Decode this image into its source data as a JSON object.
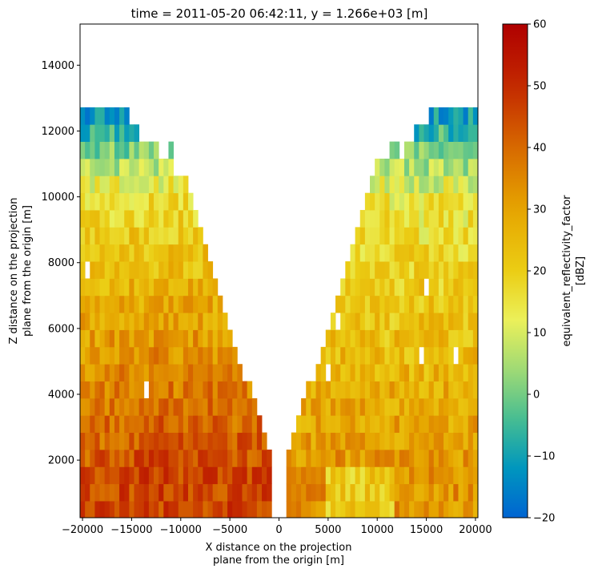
{
  "chart_data": {
    "type": "heatmap",
    "title": "time = 2011-05-20 06:42:11, y = 1.266e+03 [m]",
    "xlabel": [
      "X distance on the projection",
      "plane from the origin [m]"
    ],
    "ylabel": [
      "Z distance on the projection",
      "plane from the origin [m]"
    ],
    "xlim": [
      -20250,
      20250
    ],
    "ylim": [
      250,
      15250
    ],
    "xticks": [
      -20000,
      -15000,
      -10000,
      -5000,
      0,
      5000,
      10000,
      15000,
      20000
    ],
    "xtick_labels": [
      "−20000",
      "−15000",
      "−10000",
      "−5000",
      "0",
      "5000",
      "10000",
      "15000",
      "20000"
    ],
    "yticks": [
      2000,
      4000,
      6000,
      8000,
      10000,
      12000,
      14000
    ],
    "ytick_labels": [
      "2000",
      "4000",
      "6000",
      "8000",
      "10000",
      "12000",
      "14000"
    ],
    "colorbar": {
      "label": [
        "equivalent_reflectivity_factor",
        "[dBZ]"
      ],
      "colormap": "HomeyerRainbow",
      "vmin": -20,
      "vmax": 60,
      "ticks": [
        -20,
        -10,
        0,
        10,
        20,
        30,
        40,
        50,
        60
      ],
      "tick_labels": [
        "−20",
        "−10",
        "0",
        "10",
        "20",
        "30",
        "40",
        "50",
        "60"
      ]
    },
    "grid": false,
    "cell_size_m": [
      500,
      520
    ],
    "row_centers_m": [
      500,
      1020,
      1540,
      2060,
      2580,
      3100,
      3620,
      4140,
      4660,
      5180,
      5700,
      6220,
      6740,
      7260,
      7780,
      8300,
      8820,
      9340,
      9860,
      10380,
      10900,
      11420,
      11940,
      12460
    ],
    "profile_description": "Vertical cross-section of radar reflectivity; V-shaped echo-free cone above the radar at x=0; strongest echoes (40-52 dBZ) west of the radar below 6 km; tops 11-13 km with values below 0 dBZ"
  }
}
